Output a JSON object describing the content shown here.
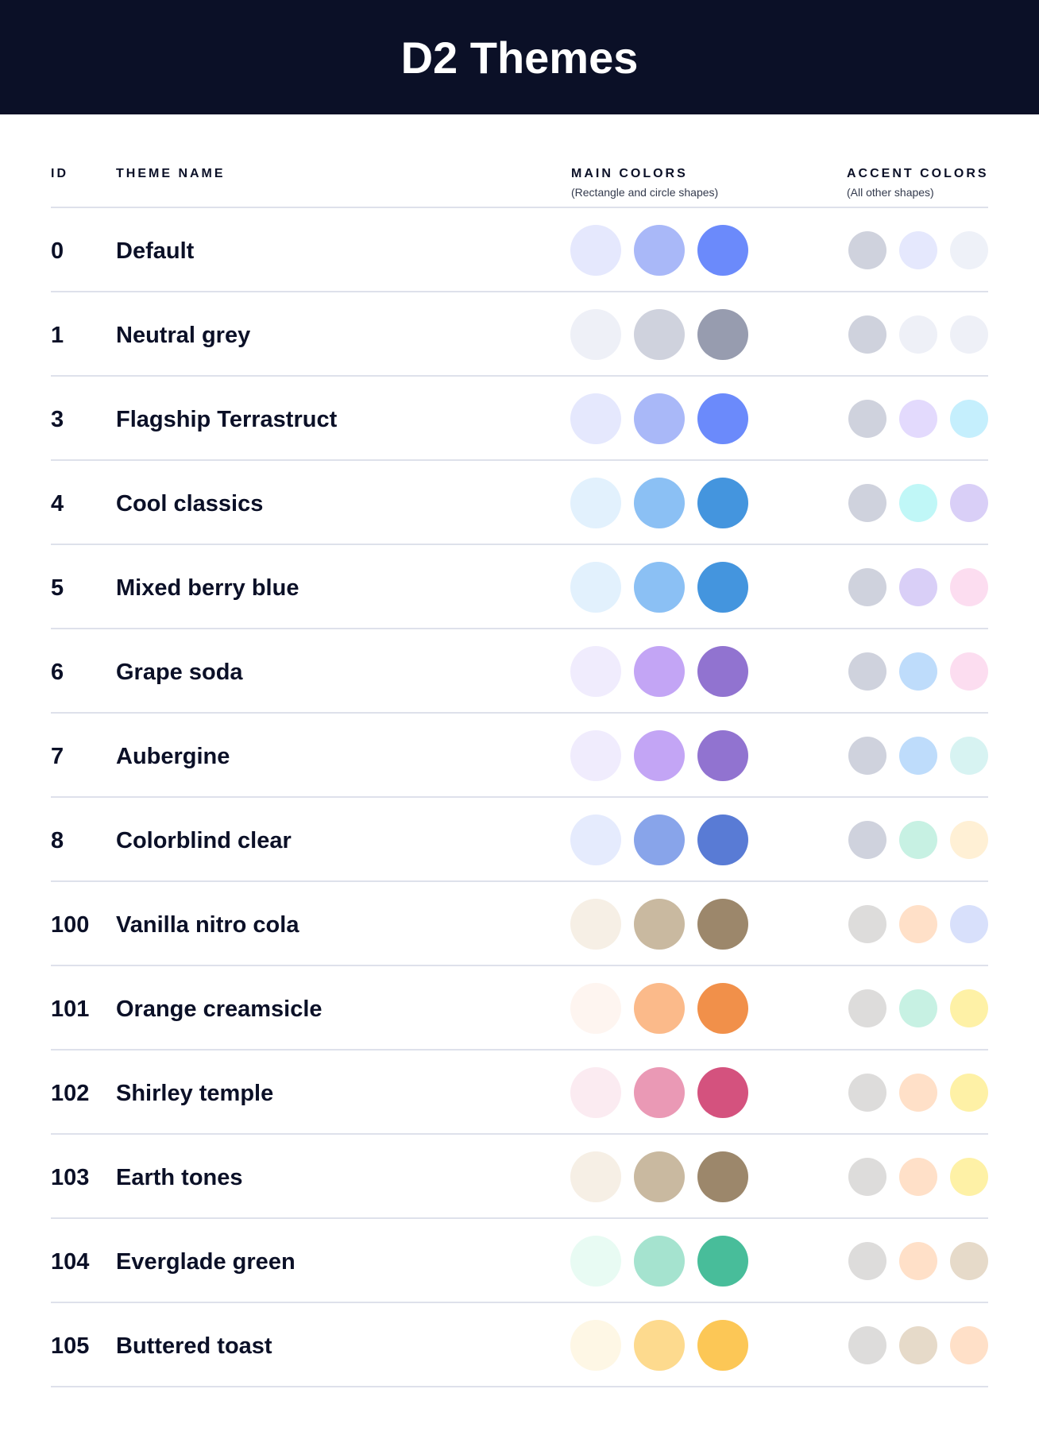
{
  "title": "D2 Themes",
  "columns": {
    "id": "ID",
    "name": "THEME NAME",
    "main": "MAIN COLORS",
    "main_sub": "(Rectangle and circle shapes)",
    "accent": "ACCENT COLORS",
    "accent_sub": "(All other shapes)"
  },
  "themes": [
    {
      "id": "0",
      "name": "Default",
      "main": [
        "#E5E8FD",
        "#A9B8F8",
        "#6B8AFB"
      ],
      "accent": [
        "#CFD2DD",
        "#E5E8FD",
        "#EEF1F8"
      ]
    },
    {
      "id": "1",
      "name": "Neutral grey",
      "main": [
        "#EEF0F7",
        "#CFD2DD",
        "#979CAF"
      ],
      "accent": [
        "#CFD2DD",
        "#EEF0F7",
        "#EEF0F7"
      ]
    },
    {
      "id": "3",
      "name": "Flagship Terrastruct",
      "main": [
        "#E5E8FD",
        "#A9B8F8",
        "#6B8AFB"
      ],
      "accent": [
        "#CFD2DD",
        "#E3DAFD",
        "#C5EFFD"
      ]
    },
    {
      "id": "4",
      "name": "Cool classics",
      "main": [
        "#E2F1FD",
        "#8BC0F4",
        "#4495DE"
      ],
      "accent": [
        "#CFD2DD",
        "#C0F7F7",
        "#D9CFF7"
      ]
    },
    {
      "id": "5",
      "name": "Mixed berry blue",
      "main": [
        "#E2F1FD",
        "#8BC0F4",
        "#4495DE"
      ],
      "accent": [
        "#CFD2DD",
        "#D9CFF7",
        "#FCDDF0"
      ]
    },
    {
      "id": "6",
      "name": "Grape soda",
      "main": [
        "#F0ECFD",
        "#C3A5F5",
        "#9173D0"
      ],
      "accent": [
        "#CFD2DD",
        "#BEDCFB",
        "#FCDDF0"
      ]
    },
    {
      "id": "7",
      "name": "Aubergine",
      "main": [
        "#F0ECFD",
        "#C3A5F5",
        "#9173D0"
      ],
      "accent": [
        "#CFD2DD",
        "#BEDCFB",
        "#D7F3F2"
      ]
    },
    {
      "id": "8",
      "name": "Colorblind clear",
      "main": [
        "#E5EBFD",
        "#88A4EA",
        "#597BD5"
      ],
      "accent": [
        "#CFD2DD",
        "#C7F1E3",
        "#FFF0D5"
      ]
    },
    {
      "id": "100",
      "name": "Vanilla nitro cola",
      "main": [
        "#F6EFE5",
        "#C9B9A0",
        "#9C876B"
      ],
      "accent": [
        "#DDDCDB",
        "#FFE0C8",
        "#D8E0FB"
      ]
    },
    {
      "id": "101",
      "name": "Orange creamsicle",
      "main": [
        "#FEF5F0",
        "#FBBA8A",
        "#F1904A"
      ],
      "accent": [
        "#DDDCDB",
        "#C7F1E3",
        "#FEF1A6"
      ]
    },
    {
      "id": "102",
      "name": "Shirley temple",
      "main": [
        "#FBEBF1",
        "#EA99B5",
        "#D4527E"
      ],
      "accent": [
        "#DDDCDB",
        "#FFE0C8",
        "#FEF1A6"
      ]
    },
    {
      "id": "103",
      "name": "Earth tones",
      "main": [
        "#F6EFE5",
        "#C9B9A0",
        "#9C876B"
      ],
      "accent": [
        "#DDDCDB",
        "#FFE0C8",
        "#FEF1A6"
      ]
    },
    {
      "id": "104",
      "name": "Everglade green",
      "main": [
        "#E8FBF3",
        "#A5E3CF",
        "#48BD9A"
      ],
      "accent": [
        "#DDDCDB",
        "#FFE0C8",
        "#E6DAC9"
      ]
    },
    {
      "id": "105",
      "name": "Buttered toast",
      "main": [
        "#FEF7E5",
        "#FDDA8E",
        "#FCC756"
      ],
      "accent": [
        "#DDDCDB",
        "#E6DAC9",
        "#FFE0C8"
      ]
    }
  ]
}
